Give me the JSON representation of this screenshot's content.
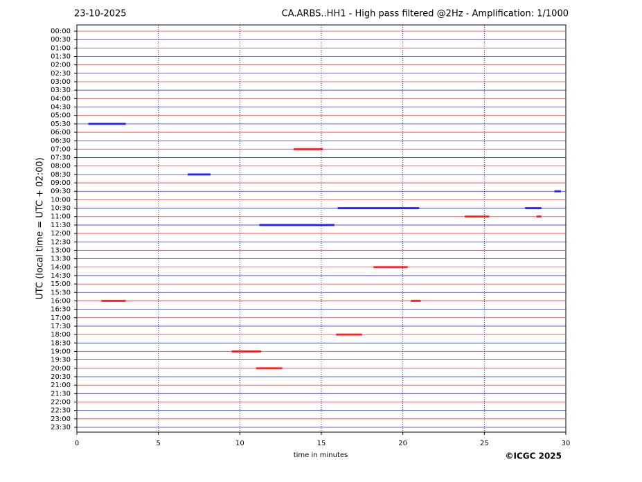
{
  "chart_data": {
    "type": "helicorder",
    "date": "23-10-2025",
    "title": "CA.ARBS..HH1 - High pass filtered @2Hz - Amplification: 1/1000",
    "y_label": "UTC (local time = UTC + 02:00)",
    "x_label": "time in minutes",
    "credit": "©ICGC 2025",
    "categories": [
      "00:00",
      "00:30",
      "01:00",
      "01:30",
      "02:00",
      "02:30",
      "03:00",
      "03:30",
      "04:00",
      "04:30",
      "05:00",
      "05:30",
      "06:00",
      "06:30",
      "07:00",
      "07:30",
      "08:00",
      "08:30",
      "09:00",
      "09:30",
      "10:00",
      "10:30",
      "11:00",
      "11:30",
      "12:00",
      "12:30",
      "13:00",
      "13:30",
      "14:00",
      "14:30",
      "15:00",
      "15:30",
      "16:00",
      "16:30",
      "17:00",
      "17:30",
      "18:00",
      "18:30",
      "19:00",
      "19:30",
      "20:00",
      "20:30",
      "21:00",
      "21:30",
      "22:00",
      "22:30",
      "23:00",
      "23:30"
    ],
    "colors": [
      "#ff0000",
      "#0000ff"
    ],
    "xlim": [
      0,
      30
    ],
    "xticks": [
      0,
      5,
      10,
      15,
      20,
      25,
      30
    ],
    "grid": true,
    "events": [
      {
        "row": 11,
        "x": [
          0.7,
          3.0
        ]
      },
      {
        "row": 14,
        "x": [
          13.3,
          15.1
        ]
      },
      {
        "row": 17,
        "x": [
          6.8,
          8.2
        ]
      },
      {
        "row": 19,
        "x": [
          29.3,
          29.7
        ]
      },
      {
        "row": 21,
        "x": [
          16.0,
          21.0
        ]
      },
      {
        "row": 21,
        "x": [
          27.5,
          28.5
        ]
      },
      {
        "row": 22,
        "x": [
          23.8,
          25.3
        ]
      },
      {
        "row": 22,
        "x": [
          28.2,
          28.5
        ]
      },
      {
        "row": 23,
        "x": [
          11.2,
          15.8
        ]
      },
      {
        "row": 28,
        "x": [
          18.2,
          20.3
        ]
      },
      {
        "row": 32,
        "x": [
          1.5,
          3.0
        ]
      },
      {
        "row": 32,
        "x": [
          20.5,
          21.1
        ]
      },
      {
        "row": 36,
        "x": [
          15.9,
          17.5
        ]
      },
      {
        "row": 38,
        "x": [
          9.5,
          11.3
        ]
      },
      {
        "row": 40,
        "x": [
          11.0,
          12.6
        ]
      }
    ]
  }
}
